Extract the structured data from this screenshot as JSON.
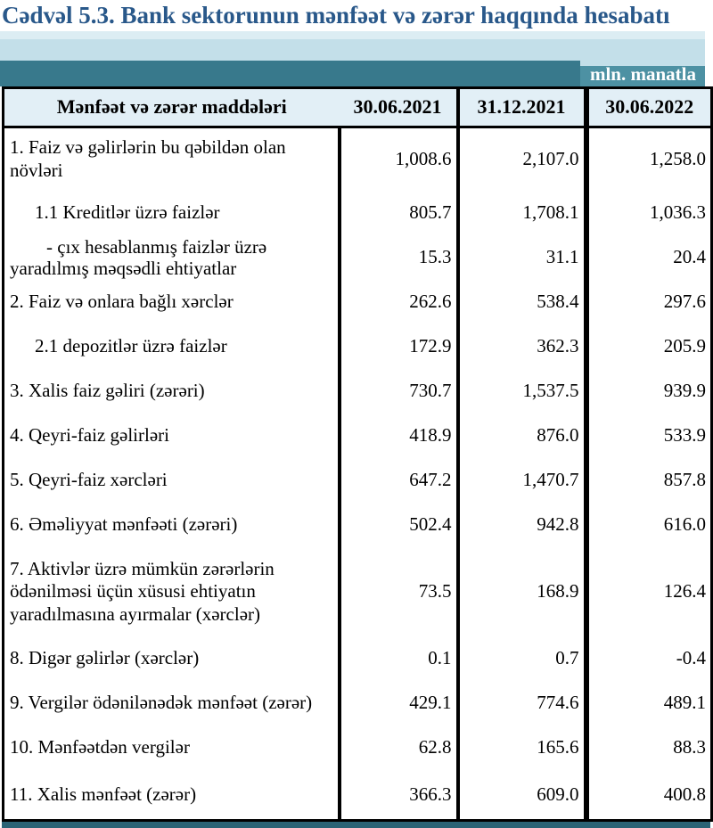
{
  "title": "Cədvəl 5.3. Bank sektorunun mənfəət və zərər haqqında hesabatı",
  "banner": {
    "unit_label": "mln. manatla"
  },
  "table": {
    "header": {
      "items_label": "Mənfəət və zərər maddələri",
      "periods": [
        "30.06.2021",
        "31.12.2021",
        "30.06.2022"
      ]
    },
    "rows": [
      {
        "label": "1. Faiz və gəlirlərin bu qəbildən olan növləri",
        "indent": 0,
        "values": [
          "1,008.6",
          "2,107.0",
          "1,258.0"
        ]
      },
      {
        "label": "1.1 Kreditlər üzrə faizlər",
        "indent": 1,
        "values": [
          "805.7",
          "1,708.1",
          "1,036.3"
        ]
      },
      {
        "label": "- çıx hesablanmış faizlər üzrə yaradılmış məqsədli ehtiyatlar",
        "indent": 2,
        "values": [
          "15.3",
          "31.1",
          "20.4"
        ]
      },
      {
        "label": "2. Faiz və onlara bağlı xərclər",
        "indent": 0,
        "values": [
          "262.6",
          "538.4",
          "297.6"
        ]
      },
      {
        "label": "2.1 depozitlər üzrə faizlər",
        "indent": 1,
        "values": [
          "172.9",
          "362.3",
          "205.9"
        ]
      },
      {
        "label": "3. Xalis faiz gəliri (zərəri)",
        "indent": 0,
        "values": [
          "730.7",
          "1,537.5",
          "939.9"
        ]
      },
      {
        "label": "4. Qeyri-faiz gəlirləri",
        "indent": 0,
        "values": [
          "418.9",
          "876.0",
          "533.9"
        ]
      },
      {
        "label": "5. Qeyri-faiz xərcləri",
        "indent": 0,
        "values": [
          "647.2",
          "1,470.7",
          "857.8"
        ]
      },
      {
        "label": "6. Əməliyyat mənfəəti (zərəri)",
        "indent": 0,
        "values": [
          "502.4",
          "942.8",
          "616.0"
        ]
      },
      {
        "label": "7. Aktivlər üzrə mümkün zərərlərin ödənilməsi üçün xüsusi ehtiyatın yaradılmasına ayırmalar (xərclər)",
        "indent": 0,
        "values": [
          "73.5",
          "168.9",
          "126.4"
        ]
      },
      {
        "label": "8. Digər gəlirlər (xərclər)",
        "indent": 0,
        "values": [
          "0.1",
          "0.7",
          "-0.4"
        ]
      },
      {
        "label": "9. Vergilər ödənilənədək mənfəət (zərər)",
        "indent": 0,
        "values": [
          "429.1",
          "774.6",
          "489.1"
        ]
      },
      {
        "label": "10. Mənfəətdən vergilər",
        "indent": 0,
        "values": [
          "62.8",
          "165.6",
          "88.3"
        ]
      },
      {
        "label": "11. Xalis mənfəət (zərər)",
        "indent": 0,
        "values": [
          "366.3",
          "609.0",
          "400.8"
        ]
      }
    ]
  },
  "colors": {
    "title_blue": "#29588a",
    "band_light_blue": "#c3dfe9",
    "band_light_blue_top": "#dcedf3",
    "band_teal": "#38798c",
    "band_teal_light": "#4d91a3",
    "header_cell_bg": "#e2eff6",
    "border_black": "#000000",
    "bottom_strip_teal": "#2a6375",
    "unit_text_white": "#ffffff"
  }
}
